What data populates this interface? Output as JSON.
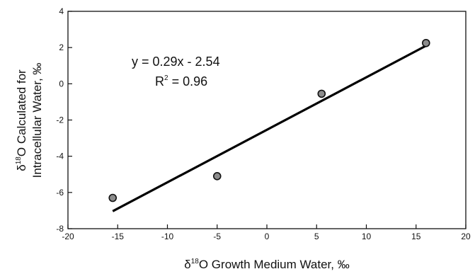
{
  "chart_data": {
    "type": "scatter",
    "xlabel": {
      "prefix": "δ",
      "sup": "18",
      "rest": "O  Growth Medium Water, ‰"
    },
    "ylabel": {
      "line1_prefix": "δ",
      "line1_sup": "18",
      "line1_rest": "O  Calculated for",
      "line2": "Intracellular Water, ‰"
    },
    "xlim": [
      -20,
      20
    ],
    "ylim": [
      -8,
      4
    ],
    "xticks": [
      -20,
      -15,
      -10,
      -5,
      0,
      5,
      10,
      15,
      20
    ],
    "yticks": [
      -8,
      -6,
      -4,
      -2,
      0,
      2,
      4
    ],
    "points": [
      {
        "x": -15.5,
        "y": -6.3
      },
      {
        "x": -5.0,
        "y": -5.1
      },
      {
        "x": 5.5,
        "y": -0.55
      },
      {
        "x": 16.0,
        "y": 2.25
      }
    ],
    "fit": {
      "slope": 0.29,
      "intercept": -2.54,
      "x_range": [
        -15.5,
        16.0
      ]
    },
    "annotation": {
      "equation": "y = 0.29x - 2.54",
      "r2_prefix": "R",
      "r2_sup": "2",
      "r2_rest": " = 0.96"
    },
    "colors": {
      "axis": "#111111",
      "point_fill": "#8c8c8c",
      "point_stroke": "#111111",
      "fit_line": "#000000"
    }
  }
}
